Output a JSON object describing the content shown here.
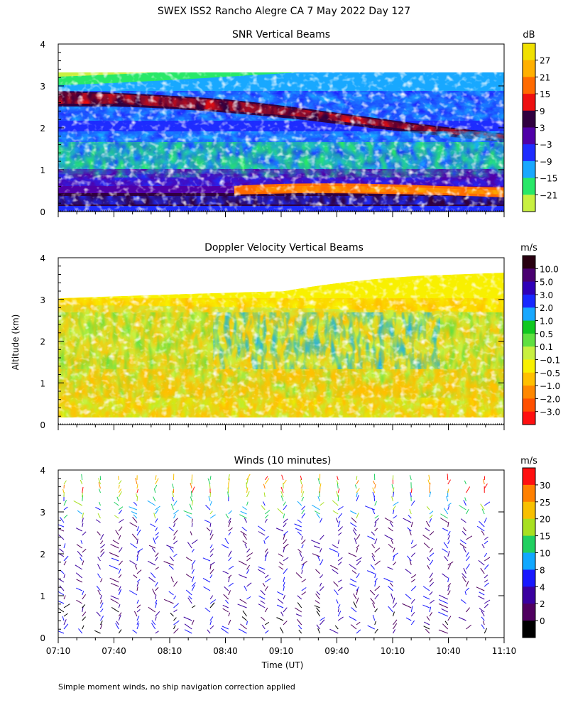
{
  "header": {
    "title": "SWEX ISS2 Rancho Alegre CA   7 May 2022 Day 127"
  },
  "footer": {
    "note": "Simple moment winds, no ship navigation correction applied"
  },
  "shared_axes": {
    "ylabel": "Altitude (km)",
    "xlabel": "Time (UT)",
    "x_ticks": [
      "07:10",
      "07:40",
      "08:10",
      "08:40",
      "09:10",
      "09:40",
      "10:10",
      "10:40",
      "11:10"
    ],
    "y_ticks": [
      "0",
      "1",
      "2",
      "3",
      "4"
    ]
  },
  "chart_data": [
    {
      "type": "heatmap",
      "title": "SNR Vertical Beams",
      "xlim": [
        "07:10",
        "11:10"
      ],
      "ylim": [
        0,
        4
      ],
      "colorbar": {
        "unit": "dB",
        "labels": [
          "27",
          "21",
          "15",
          "9",
          "3",
          "−3",
          "−9",
          "−15",
          "−21"
        ],
        "colors": [
          "#f0e000",
          "#ffb000",
          "#ff6a00",
          "#ee1010",
          "#300040",
          "#5000a8",
          "#1e2cff",
          "#18a8ff",
          "#28e868",
          "#c8f040"
        ]
      }
    },
    {
      "type": "heatmap",
      "title": "Doppler Velocity Vertical Beams",
      "xlim": [
        "07:10",
        "11:10"
      ],
      "ylim": [
        0,
        4
      ],
      "colorbar": {
        "unit": "m/s",
        "labels": [
          "10.0",
          "5.0",
          "3.0",
          "2.0",
          "1.0",
          "0.5",
          "0.1",
          "−0.1",
          "−0.5",
          "−1.0",
          "−2.0",
          "−3.0"
        ],
        "colors": [
          "#280010",
          "#4a0070",
          "#3000b8",
          "#1828ff",
          "#18a8ff",
          "#10c820",
          "#60e040",
          "#c8f040",
          "#f8f000",
          "#ffc000",
          "#ff8800",
          "#ff5000",
          "#ff1010"
        ]
      }
    },
    {
      "type": "scatter",
      "title": "Winds (10 minutes)",
      "xlim": [
        "07:10",
        "11:10"
      ],
      "ylim": [
        0,
        4
      ],
      "colorbar": {
        "unit": "m/s",
        "labels": [
          "30",
          "25",
          "20",
          "15",
          "10",
          "8",
          "4",
          "2",
          "0"
        ],
        "colors": [
          "#ff1010",
          "#ff8000",
          "#f8c000",
          "#a8e020",
          "#20d060",
          "#10a8ff",
          "#1818ff",
          "#3a00a0",
          "#500060",
          "#000000"
        ]
      }
    }
  ]
}
